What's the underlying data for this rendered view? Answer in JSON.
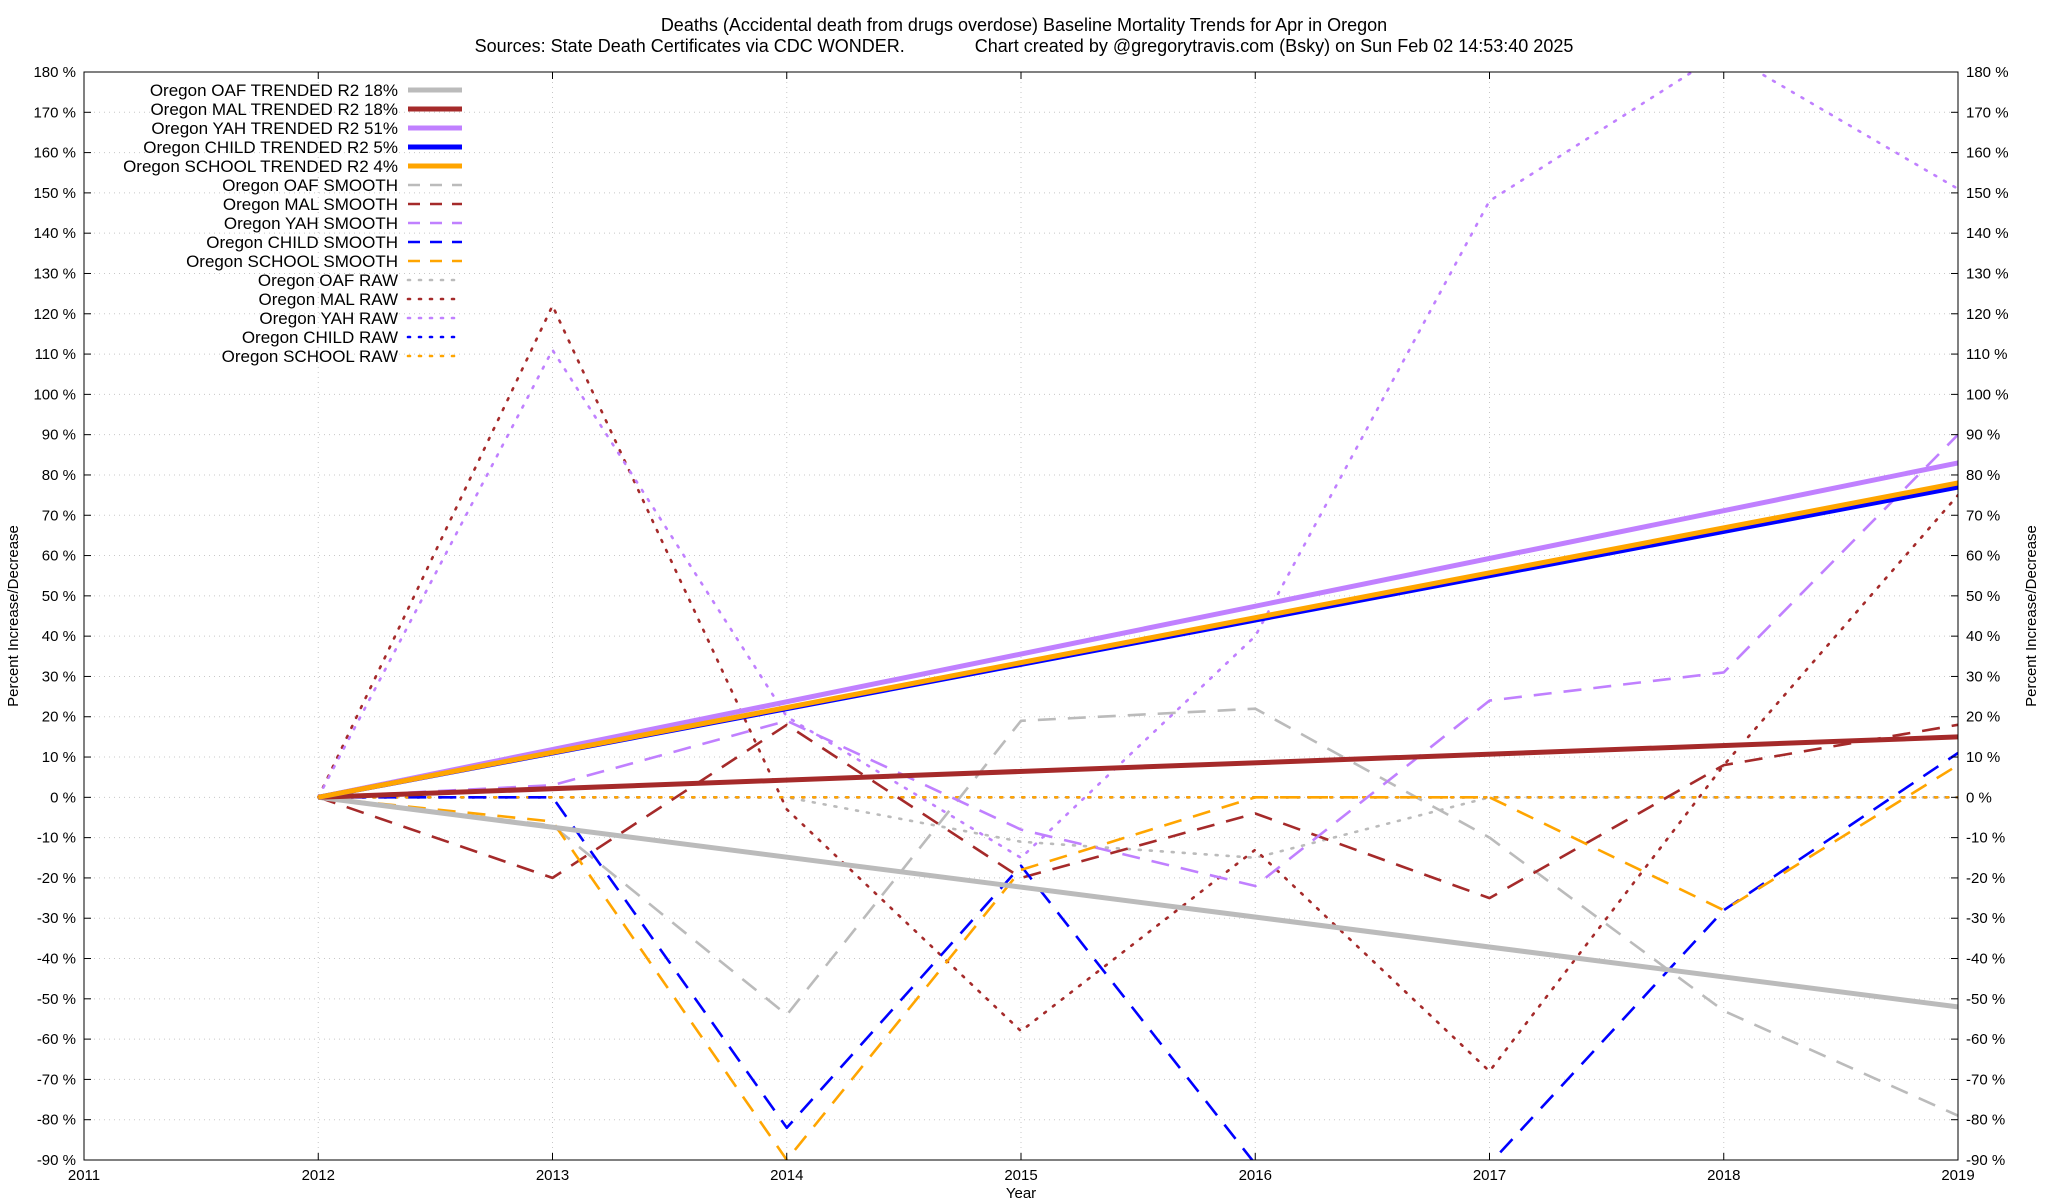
{
  "chart_data": {
    "type": "line",
    "title": "Deaths (Accidental death from drugs overdose)  Baseline Mortality Trends for Apr in Oregon",
    "subtitle": "Sources: State Death Certificates via CDC WONDER.              Chart created by @gregorytravis.com (Bsky) on Sun Feb 02 14:53:40 2025",
    "xlabel": "Year",
    "ylabel": "Percent Increase/Decrease",
    "xlim": [
      2011,
      2019
    ],
    "ylim": [
      -90,
      180
    ],
    "x_ticks": [
      "2011",
      "2012",
      "2013",
      "2014",
      "2015",
      "2016",
      "2017",
      "2018",
      "2019"
    ],
    "y_ticks": [
      "180 %",
      "170 %",
      "160 %",
      "150 %",
      "140 %",
      "130 %",
      "120 %",
      "110 %",
      "100 %",
      "90 %",
      "80 %",
      "70 %",
      "60 %",
      "50 %",
      "40 %",
      "30 %",
      "20 %",
      "10 %",
      "0 %",
      "-10 %",
      "-20 %",
      "-30 %",
      "-40 %",
      "-50 %",
      "-60 %",
      "-70 %",
      "-80 %",
      "-90 %"
    ],
    "grid": true,
    "legend_position": "top-left",
    "series": [
      {
        "name": "Oregon OAF TRENDED R2  18%",
        "style": "solid",
        "color": "#bbbbbb",
        "x": [
          2012,
          2019
        ],
        "y": [
          0,
          -52
        ]
      },
      {
        "name": "Oregon MAL TRENDED R2  18%",
        "style": "solid",
        "color": "#a52a2a",
        "x": [
          2012,
          2019
        ],
        "y": [
          0,
          15
        ]
      },
      {
        "name": "Oregon YAH TRENDED R2  51%",
        "style": "solid",
        "color": "#c080ff",
        "x": [
          2012,
          2019
        ],
        "y": [
          0,
          83
        ]
      },
      {
        "name": "Oregon CHILD TRENDED R2  5%",
        "style": "solid",
        "color": "#0000ff",
        "x": [
          2012,
          2019
        ],
        "y": [
          0,
          77
        ]
      },
      {
        "name": "Oregon SCHOOL TRENDED R2  4%",
        "style": "solid",
        "color": "#ffa500",
        "x": [
          2012,
          2019
        ],
        "y": [
          0,
          78
        ]
      },
      {
        "name": "Oregon OAF SMOOTH",
        "style": "dashed",
        "color": "#bbbbbb",
        "x": [
          2012,
          2013,
          2014,
          2015,
          2016,
          2017,
          2018,
          2019
        ],
        "y": [
          0,
          -7,
          -54,
          19,
          22,
          -10,
          -53,
          -79
        ]
      },
      {
        "name": "Oregon MAL SMOOTH",
        "style": "dashed",
        "color": "#a52a2a",
        "x": [
          2012,
          2013,
          2014,
          2015,
          2016,
          2017,
          2018,
          2019
        ],
        "y": [
          0,
          -20,
          18,
          -20,
          -4,
          -25,
          8,
          18
        ]
      },
      {
        "name": "Oregon YAH SMOOTH",
        "style": "dashed",
        "color": "#c080ff",
        "x": [
          2012,
          2013,
          2014,
          2015,
          2016,
          2017,
          2018,
          2019
        ],
        "y": [
          0,
          3,
          19,
          -8,
          -22,
          24,
          31,
          90
        ]
      },
      {
        "name": "Oregon CHILD SMOOTH",
        "style": "dashed",
        "color": "#0000ff",
        "x": [
          2012,
          2013,
          2014,
          2015,
          2016,
          2017,
          2018,
          2019
        ],
        "y": [
          0,
          0,
          -82,
          -17,
          -91,
          -91,
          -28,
          11
        ]
      },
      {
        "name": "Oregon SCHOOL SMOOTH",
        "style": "dashed",
        "color": "#ffa500",
        "x": [
          2012,
          2013,
          2014,
          2015,
          2016,
          2017,
          2018,
          2019
        ],
        "y": [
          0,
          -6,
          -90,
          -18,
          0,
          0,
          -28,
          8
        ]
      },
      {
        "name": "Oregon OAF RAW",
        "style": "dotted",
        "color": "#bbbbbb",
        "x": [
          2012,
          2013,
          2014,
          2015,
          2016,
          2017,
          2018,
          2019
        ],
        "y": [
          0,
          0,
          0,
          -11,
          -15,
          0,
          0,
          0
        ]
      },
      {
        "name": "Oregon MAL RAW",
        "style": "dotted",
        "color": "#a52a2a",
        "x": [
          2012,
          2013,
          2014,
          2015,
          2016,
          2017,
          2018,
          2019
        ],
        "y": [
          0,
          122,
          -3,
          -58,
          -13,
          -68,
          8,
          75
        ]
      },
      {
        "name": "Oregon YAH RAW",
        "style": "dotted",
        "color": "#c080ff",
        "x": [
          2012,
          2013,
          2014,
          2015,
          2016,
          2017,
          2018,
          2019
        ],
        "y": [
          0,
          111,
          20,
          -15,
          40,
          148,
          185,
          151
        ]
      },
      {
        "name": "Oregon CHILD RAW",
        "style": "dotted",
        "color": "#0000ff",
        "x": [
          2012,
          2013,
          2014,
          2015,
          2016,
          2017,
          2018,
          2019
        ],
        "y": [
          0,
          0,
          0,
          0,
          0,
          0,
          0,
          0
        ]
      },
      {
        "name": "Oregon SCHOOL RAW",
        "style": "dotted",
        "color": "#ffa500",
        "x": [
          2012,
          2013,
          2014,
          2015,
          2016,
          2017,
          2018,
          2019
        ],
        "y": [
          0,
          0,
          0,
          0,
          0,
          0,
          0,
          0
        ]
      }
    ]
  }
}
